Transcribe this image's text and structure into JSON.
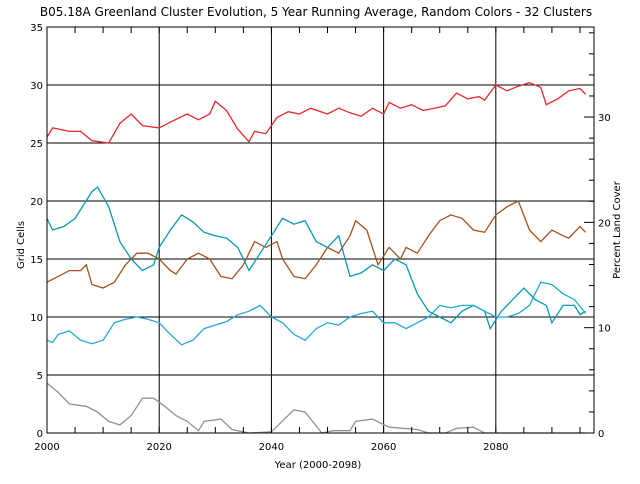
{
  "chart_data": {
    "type": "line",
    "title": "B05.18A Greenland Cluster Evolution, 5 Year Running Average, Random Colors - 32 Clusters",
    "xlabel": "Year (2000-2098)",
    "ylabel": "Grid Cells",
    "y2label": "Percent Land Cover",
    "xlim": [
      2000,
      2097.5
    ],
    "ylim": [
      0,
      35
    ],
    "y2lim": [
      0,
      38.55
    ],
    "xticks": [
      "2000",
      "2020",
      "2040",
      "2060",
      "2080"
    ],
    "yticks": [
      "0",
      "5",
      "10",
      "15",
      "20",
      "25",
      "30",
      "35"
    ],
    "y2ticks": [
      "0",
      "10",
      "20",
      "30"
    ],
    "grid": true,
    "series": [
      {
        "name": "cluster-red",
        "color": "#e8282a",
        "x": [
          2000,
          2001,
          2004,
          2006,
          2008,
          2011,
          2013,
          2015,
          2017,
          2020,
          2022,
          2025,
          2027,
          2029,
          2030,
          2032,
          2034,
          2036,
          2037,
          2039,
          2041,
          2043,
          2045,
          2047,
          2050,
          2052,
          2054,
          2056,
          2058,
          2060,
          2061,
          2063,
          2065,
          2067,
          2069,
          2071,
          2073,
          2075,
          2077,
          2078,
          2080,
          2082,
          2084,
          2086,
          2088,
          2089,
          2091,
          2093,
          2095,
          2096
        ],
        "y": [
          25.5,
          26.3,
          26,
          26,
          25.2,
          25,
          26.7,
          27.5,
          26.5,
          26.3,
          26.8,
          27.5,
          27,
          27.5,
          28.6,
          27.8,
          26.2,
          25.1,
          26,
          25.8,
          27.2,
          27.7,
          27.5,
          28,
          27.5,
          28,
          27.6,
          27.3,
          28,
          27.5,
          28.5,
          28,
          28.3,
          27.8,
          28,
          28.2,
          29.3,
          28.8,
          29,
          28.7,
          30,
          29.5,
          29.9,
          30.2,
          29.8,
          28.3,
          28.8,
          29.5,
          29.7,
          29.2
        ]
      },
      {
        "name": "cluster-brown",
        "color": "#a4521c",
        "x": [
          2000,
          2002,
          2004,
          2006,
          2007,
          2008,
          2010,
          2012,
          2014,
          2016,
          2018,
          2020,
          2022,
          2023,
          2025,
          2027,
          2029,
          2031,
          2033,
          2035,
          2037,
          2039,
          2041,
          2042,
          2044,
          2046,
          2048,
          2050,
          2052,
          2054,
          2055,
          2057,
          2059,
          2061,
          2063,
          2064,
          2066,
          2068,
          2070,
          2072,
          2074,
          2076,
          2078,
          2080,
          2082,
          2084,
          2086,
          2088,
          2090,
          2092,
          2093,
          2095,
          2096
        ],
        "y": [
          13,
          13.5,
          14,
          14,
          14.5,
          12.8,
          12.5,
          13,
          14.5,
          15.5,
          15.5,
          15,
          14,
          13.7,
          15,
          15.5,
          15,
          13.5,
          13.3,
          14.5,
          16.5,
          16,
          16.5,
          15,
          13.5,
          13.3,
          14.5,
          16,
          15.5,
          17,
          18.3,
          17.5,
          14.5,
          16,
          15,
          16,
          15.5,
          17,
          18.3,
          18.8,
          18.5,
          17.5,
          17.3,
          18.8,
          19.5,
          20,
          17.5,
          16.5,
          17.5,
          17,
          16.8,
          17.8,
          17.3
        ]
      },
      {
        "name": "cluster-teal",
        "color": "#0a98b0",
        "x": [
          2000,
          2001,
          2003,
          2005,
          2008,
          2009,
          2011,
          2013,
          2015,
          2017,
          2019,
          2020,
          2022,
          2024,
          2026,
          2028,
          2030,
          2032,
          2034,
          2035,
          2036,
          2038,
          2040,
          2042,
          2044,
          2046,
          2048,
          2050,
          2052,
          2054,
          2056,
          2058,
          2060,
          2062,
          2064,
          2066,
          2068,
          2070,
          2072,
          2074,
          2076,
          2078,
          2079,
          2081,
          2083,
          2085,
          2087,
          2089,
          2090,
          2092,
          2094,
          2095,
          2096
        ],
        "y": [
          18.5,
          17.5,
          17.8,
          18.5,
          20.8,
          21.2,
          19.5,
          16.5,
          15,
          14,
          14.5,
          16,
          17.5,
          18.8,
          18.2,
          17.3,
          17,
          16.8,
          16,
          15,
          14,
          15.5,
          17,
          18.5,
          18,
          18.3,
          16.5,
          16,
          17,
          13.5,
          13.8,
          14.5,
          14,
          15,
          14.5,
          12,
          10.5,
          10,
          9.5,
          10.5,
          11,
          10.5,
          9,
          10.5,
          11.5,
          12.5,
          11.5,
          11,
          9.5,
          11,
          11,
          10.2,
          10.5
        ]
      },
      {
        "name": "cluster-lightblue",
        "color": "#22a8d8",
        "x": [
          2000,
          2001,
          2002,
          2004,
          2006,
          2008,
          2010,
          2012,
          2014,
          2016,
          2018,
          2020,
          2022,
          2024,
          2026,
          2028,
          2030,
          2032,
          2034,
          2036,
          2038,
          2040,
          2042,
          2044,
          2046,
          2048,
          2050,
          2052,
          2054,
          2056,
          2058,
          2060,
          2062,
          2064,
          2066,
          2068,
          2070,
          2072,
          2074,
          2076,
          2078,
          2080,
          2082,
          2084,
          2086,
          2088,
          2090,
          2092,
          2094,
          2096
        ],
        "y": [
          8,
          7.8,
          8.5,
          8.8,
          8,
          7.7,
          8,
          9.5,
          9.8,
          10,
          9.8,
          9.5,
          8.5,
          7.6,
          8,
          9,
          9.3,
          9.6,
          10.2,
          10.5,
          11,
          10,
          9.5,
          8.5,
          8,
          9,
          9.5,
          9.3,
          10,
          10.3,
          10.5,
          9.5,
          9.5,
          9,
          9.5,
          10,
          11,
          10.8,
          11,
          11,
          10.5,
          10,
          10,
          10.3,
          11,
          13,
          12.8,
          12,
          11.5,
          10.3
        ]
      },
      {
        "name": "cluster-gray",
        "color": "#8c9494",
        "x": [
          2000,
          2002,
          2004,
          2007,
          2009,
          2011,
          2013,
          2015,
          2017,
          2019,
          2021,
          2023,
          2025,
          2027,
          2028,
          2031,
          2033,
          2036,
          2040,
          2044,
          2046,
          2049,
          2051,
          2054,
          2055,
          2058,
          2061,
          2066,
          2068,
          2071,
          2073,
          2076,
          2078,
          2096
        ],
        "y": [
          4.3,
          3.5,
          2.5,
          2.3,
          1.8,
          1,
          0.7,
          1.5,
          3,
          3,
          2.3,
          1.5,
          1,
          0.2,
          1,
          1.2,
          0.3,
          0,
          0.1,
          2,
          1.8,
          0,
          0.2,
          0.2,
          1,
          1.2,
          0.5,
          0.3,
          0,
          0,
          0.4,
          0.5,
          0,
          0
        ]
      }
    ]
  }
}
